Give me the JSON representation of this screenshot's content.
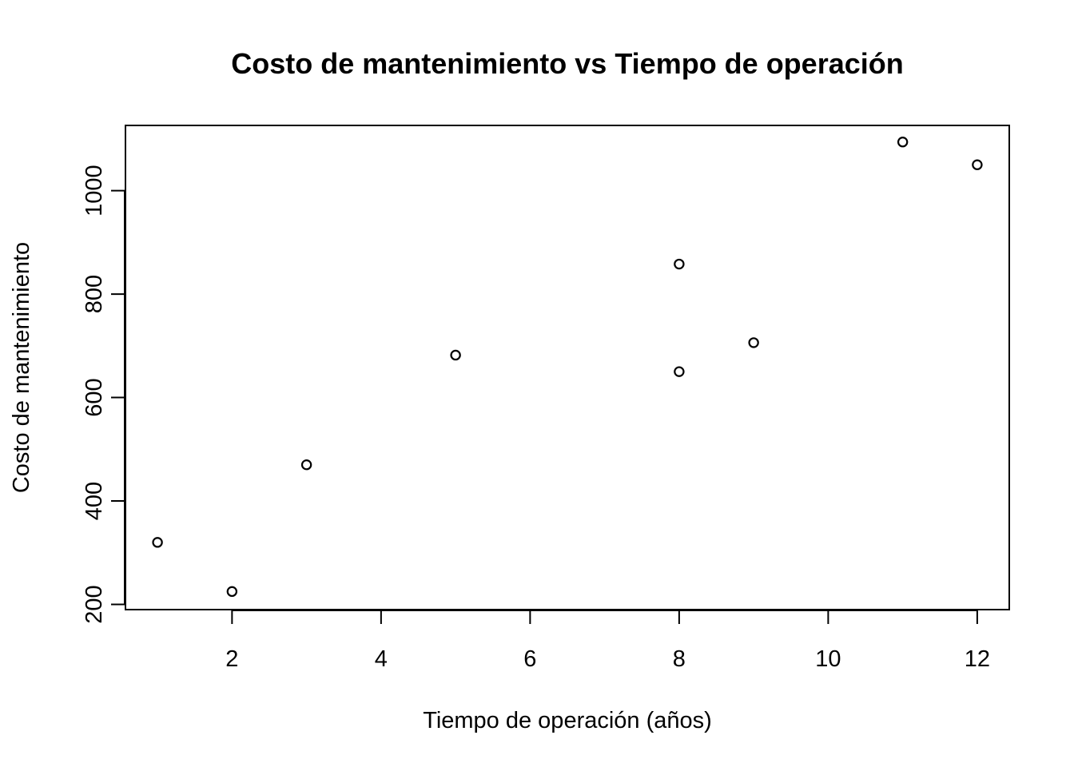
{
  "chart_data": {
    "type": "scatter",
    "title": "Costo de mantenimiento vs Tiempo de operación",
    "xlabel": "Tiempo de operación (años)",
    "ylabel": "Costo de mantenimiento",
    "x_ticks": [
      2,
      4,
      6,
      8,
      10,
      12
    ],
    "y_ticks": [
      200,
      400,
      600,
      800,
      1000
    ],
    "xlim": [
      0.57,
      12.43
    ],
    "ylim": [
      190,
      1126
    ],
    "grid": false,
    "legend": "none",
    "marker": "open-circle",
    "colors": {
      "points": "#000000",
      "axes": "#000000",
      "background": "#ffffff"
    },
    "x": [
      1,
      2,
      3,
      5,
      8,
      8,
      9,
      11,
      12
    ],
    "y": [
      320,
      225,
      470,
      682,
      858,
      650,
      706,
      1094,
      1050
    ]
  }
}
